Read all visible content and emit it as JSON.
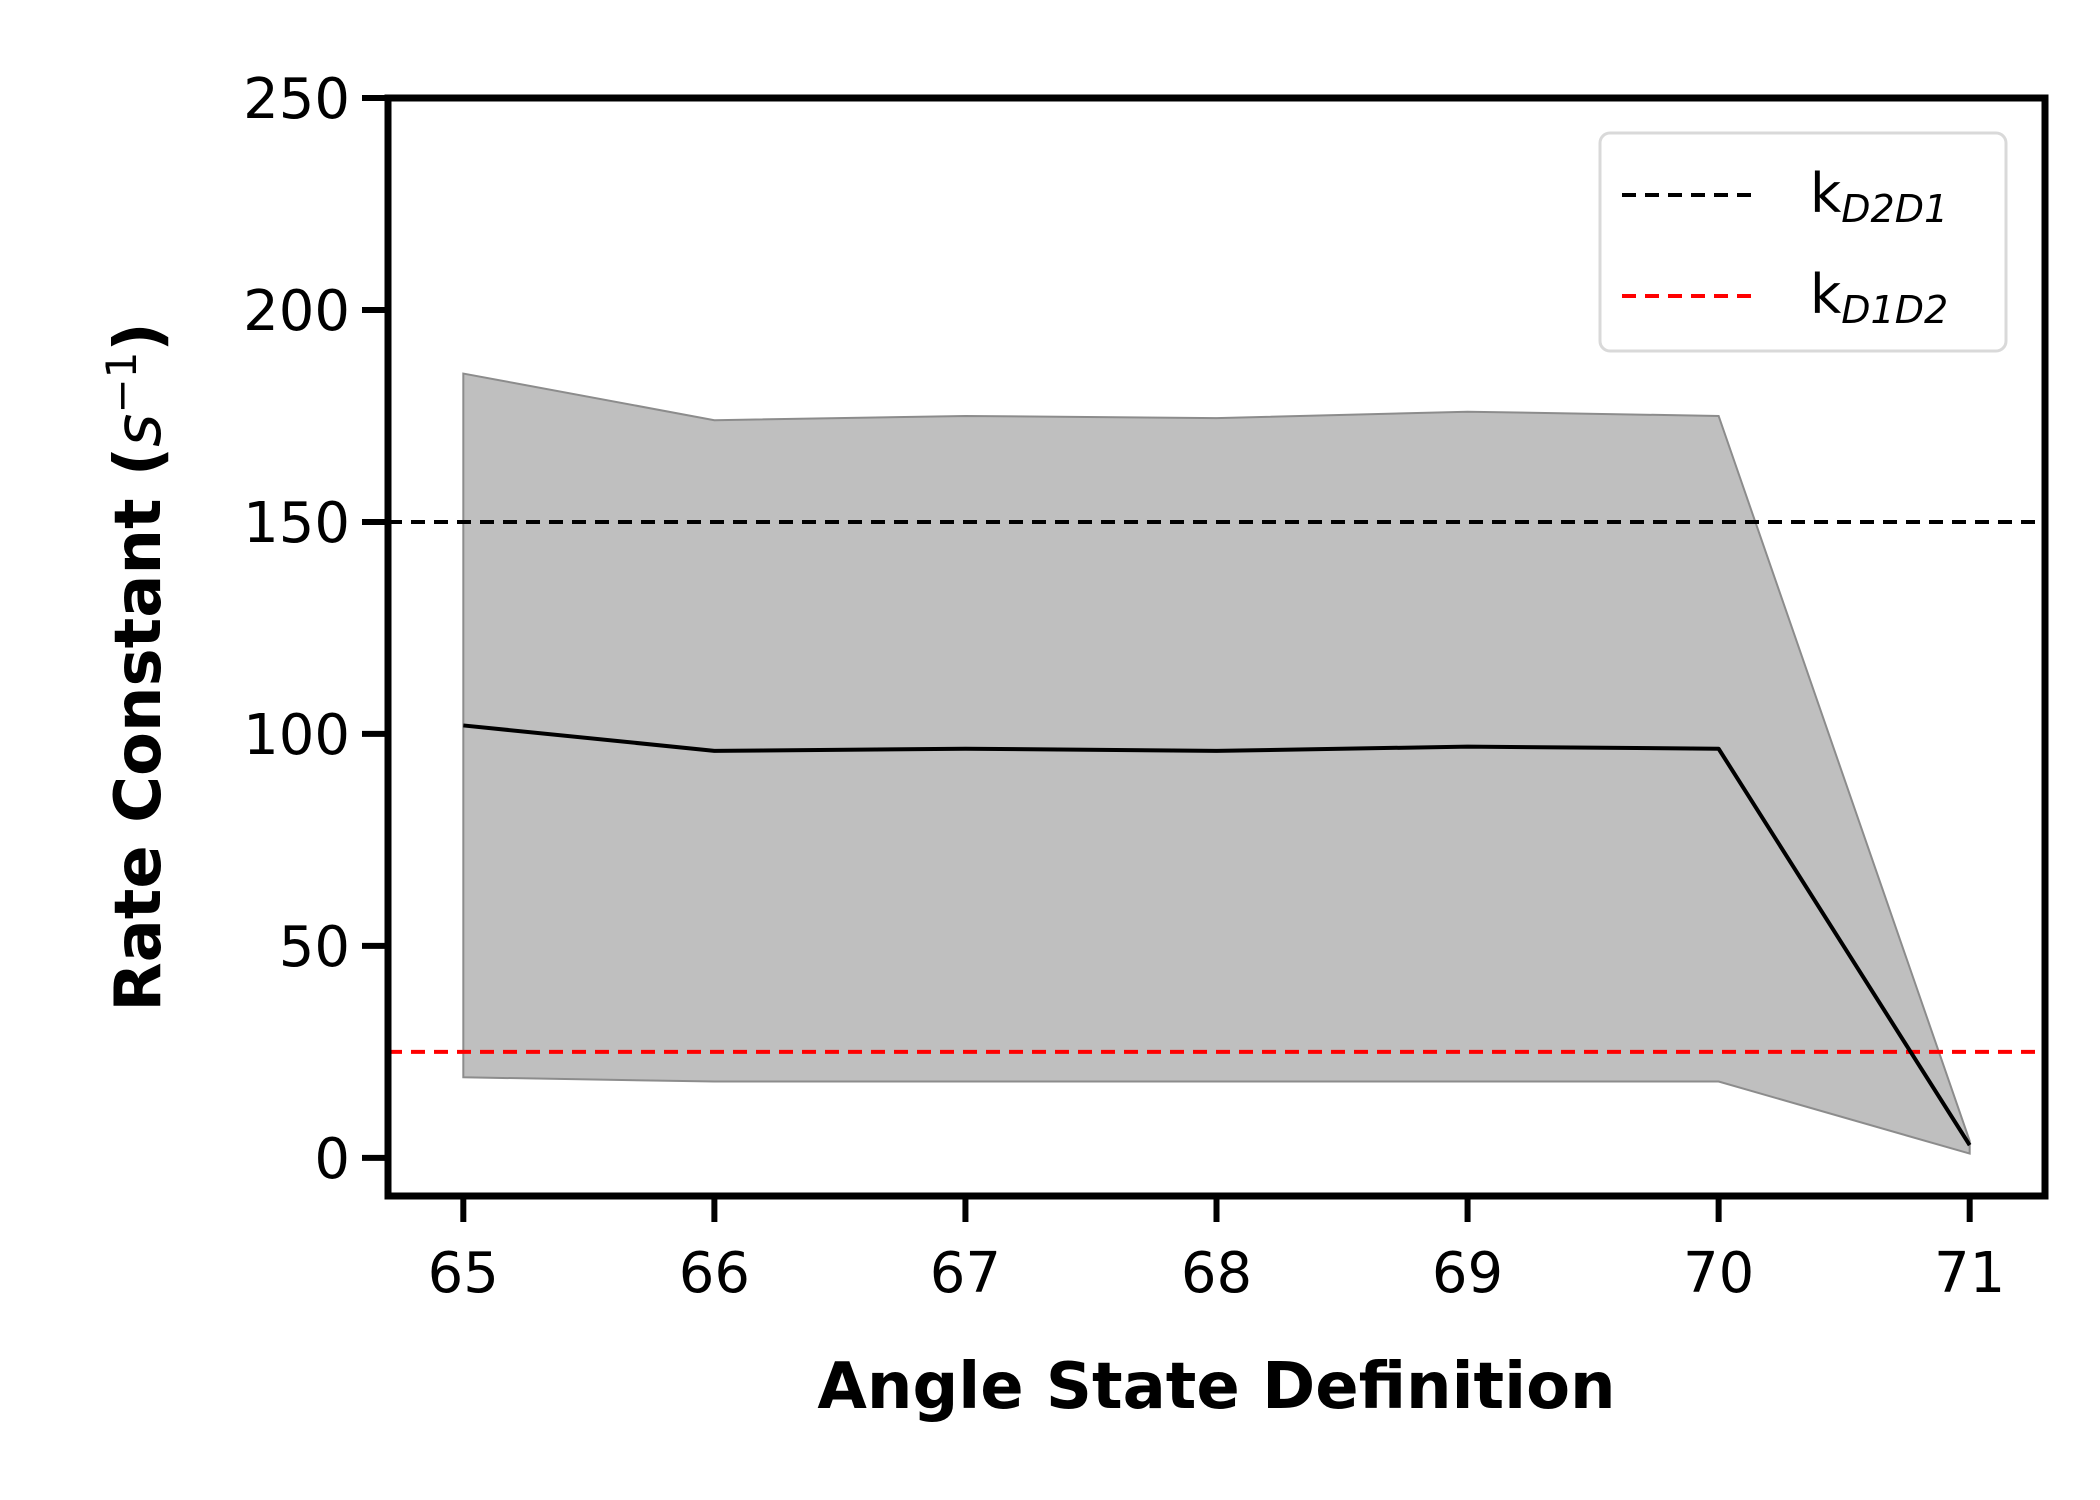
{
  "chart_data": {
    "type": "line",
    "xlabel": "Angle State Definition",
    "ylabel": {
      "main": "Rate Constant (",
      "unit": "s",
      "exp": "−1",
      "close": ")"
    },
    "x": [
      65,
      66,
      67,
      68,
      69,
      70,
      71
    ],
    "xticks": [
      "65",
      "66",
      "67",
      "68",
      "69",
      "70",
      "71"
    ],
    "xlim": [
      64.7,
      71.3
    ],
    "ylim": [
      -9,
      250
    ],
    "yticks": [
      0,
      50,
      100,
      150,
      200,
      250
    ],
    "grid": false,
    "legend_position": "top-right",
    "series": [
      {
        "values": [
          102,
          96,
          96.5,
          96,
          97,
          96.5,
          3
        ],
        "color": "#000000"
      }
    ],
    "band": {
      "upper": [
        185,
        174,
        175,
        174.5,
        176,
        175,
        4
      ],
      "lower": [
        19,
        18,
        18,
        18,
        18,
        18,
        1
      ],
      "color": "#bfbfbf",
      "edge_color": "#8c8c8c"
    },
    "reference_lines": [
      {
        "label": "k",
        "sub": "D2D1",
        "value": 150,
        "color": "#000000",
        "style": "dashed"
      },
      {
        "label": "k",
        "sub": "D1D2",
        "value": 25,
        "color": "#ff0000",
        "style": "dashed"
      }
    ]
  }
}
